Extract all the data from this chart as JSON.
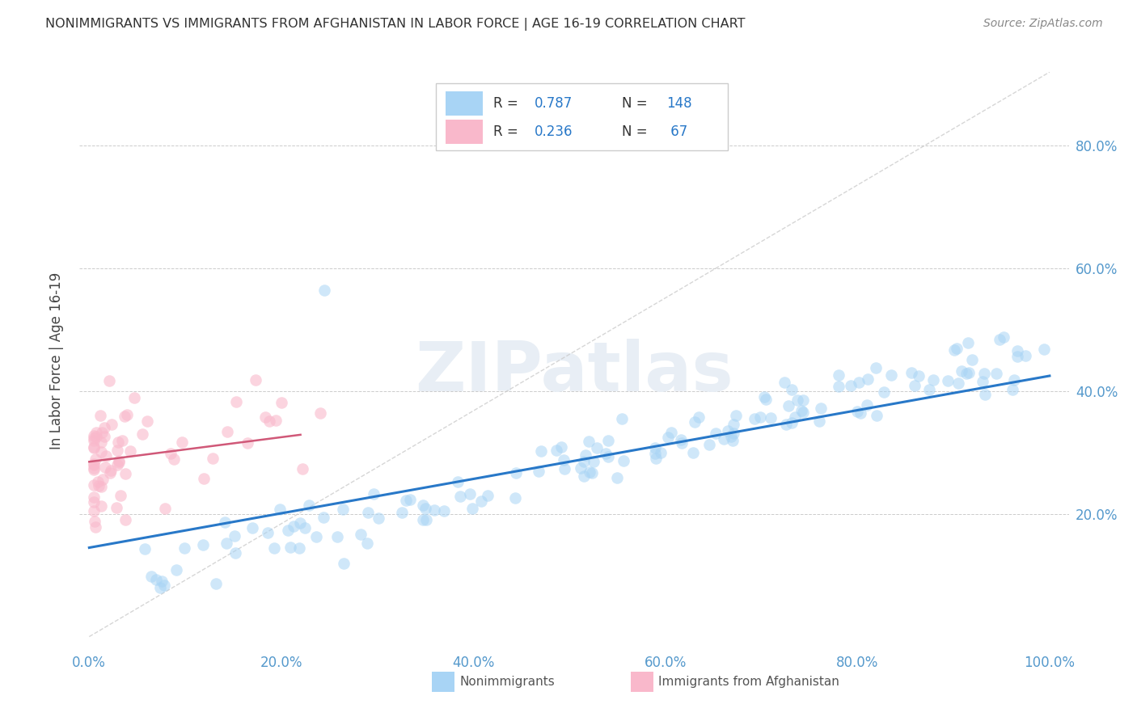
{
  "title": "NONIMMIGRANTS VS IMMIGRANTS FROM AFGHANISTAN IN LABOR FORCE | AGE 16-19 CORRELATION CHART",
  "source": "Source: ZipAtlas.com",
  "ylabel": "In Labor Force | Age 16-19",
  "blue_R": 0.787,
  "blue_N": 148,
  "pink_R": 0.236,
  "pink_N": 67,
  "blue_color": "#a8d4f5",
  "pink_color": "#f9b8cb",
  "blue_line_color": "#2878c8",
  "pink_line_color": "#d05878",
  "axis_color": "#5599cc",
  "watermark_text": "ZIPatlas",
  "watermark_color": "#e8eef5",
  "background_color": "#ffffff",
  "grid_color": "#cccccc",
  "blue_slope": 0.28,
  "blue_intercept": 0.145,
  "pink_slope": 0.2,
  "pink_intercept": 0.285,
  "diag_color": "#cccccc",
  "legend_text_color": "#333333",
  "legend_border_color": "#cccccc",
  "title_color": "#333333",
  "source_color": "#888888",
  "ylabel_color": "#444444"
}
